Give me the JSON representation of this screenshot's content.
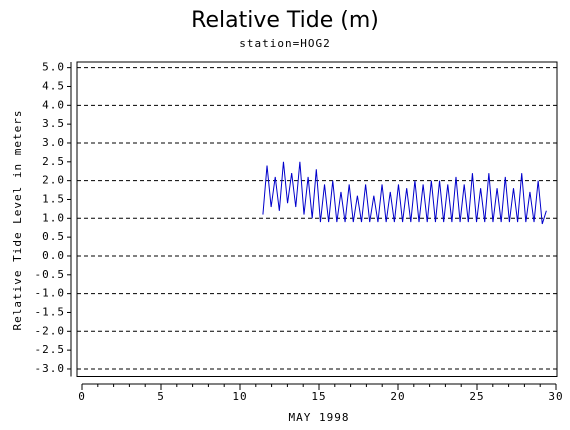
{
  "chart_data": {
    "type": "line",
    "title": "Relative Tide (m)",
    "subtitle": "station=HOG2",
    "y_label": "Relative Tide Level in meters",
    "x_label": "MAY 1998",
    "color": "#0000cc",
    "grid": "dashed",
    "xlim": [
      0,
      30
    ],
    "xticks": [
      0,
      5,
      10,
      15,
      20,
      25,
      30
    ],
    "ylim": [
      -3.2,
      5.15
    ],
    "yticks": [
      {
        "value": 5,
        "label": "5.0"
      },
      {
        "value": 4.5,
        "label": "4.5"
      },
      {
        "value": 4,
        "label": "4.0"
      },
      {
        "value": 3.5,
        "label": "3.5"
      },
      {
        "value": 3,
        "label": "3.0"
      },
      {
        "value": 2.5,
        "label": "2.5"
      },
      {
        "value": 2,
        "label": "2.0"
      },
      {
        "value": 1.5,
        "label": "1.5"
      },
      {
        "value": 1,
        "label": "1.0"
      },
      {
        "value": 0.5,
        "label": "0.5"
      },
      {
        "value": 0,
        "label": "0.0"
      },
      {
        "value": -0.5,
        "label": "-0.5"
      },
      {
        "value": -1,
        "label": "-1.0"
      },
      {
        "value": -1.5,
        "label": "-1.5"
      },
      {
        "value": -2,
        "label": "-2.0"
      },
      {
        "value": -2.5,
        "label": "-2.5"
      },
      {
        "value": -3,
        "label": "-3.0"
      }
    ],
    "x": [
      11.45,
      11.71,
      11.97,
      12.23,
      12.49,
      12.75,
      13.01,
      13.27,
      13.53,
      13.79,
      14.05,
      14.31,
      14.57,
      14.83,
      15.09,
      15.35,
      15.61,
      15.87,
      16.13,
      16.39,
      16.65,
      16.91,
      17.17,
      17.43,
      17.69,
      17.95,
      18.21,
      18.47,
      18.73,
      18.99,
      19.25,
      19.51,
      19.77,
      20.03,
      20.29,
      20.55,
      20.81,
      21.07,
      21.33,
      21.59,
      21.85,
      22.11,
      22.37,
      22.63,
      22.89,
      23.15,
      23.41,
      23.67,
      23.93,
      24.19,
      24.45,
      24.71,
      24.97,
      25.23,
      25.49,
      25.75,
      26.01,
      26.27,
      26.53,
      26.79,
      27.05,
      27.31,
      27.57,
      27.83,
      28.09,
      28.35,
      28.61,
      28.87,
      29.13,
      29.39
    ],
    "values": [
      1.1,
      2.4,
      1.3,
      2.1,
      1.2,
      2.5,
      1.4,
      2.2,
      1.3,
      2.5,
      1.1,
      2.1,
      1.0,
      2.3,
      0.9,
      1.9,
      0.9,
      2.0,
      0.9,
      1.7,
      0.9,
      1.9,
      0.9,
      1.6,
      0.9,
      1.9,
      0.9,
      1.6,
      0.9,
      1.9,
      0.9,
      1.7,
      0.9,
      1.9,
      0.9,
      1.8,
      0.9,
      2.0,
      0.9,
      1.9,
      0.9,
      2.0,
      0.9,
      2.0,
      0.9,
      1.9,
      0.9,
      2.1,
      0.9,
      1.9,
      0.9,
      2.2,
      0.9,
      1.8,
      0.9,
      2.2,
      0.9,
      1.8,
      0.9,
      2.1,
      0.9,
      1.8,
      0.9,
      2.2,
      0.9,
      1.7,
      0.9,
      2.0,
      0.85,
      1.2
    ]
  }
}
